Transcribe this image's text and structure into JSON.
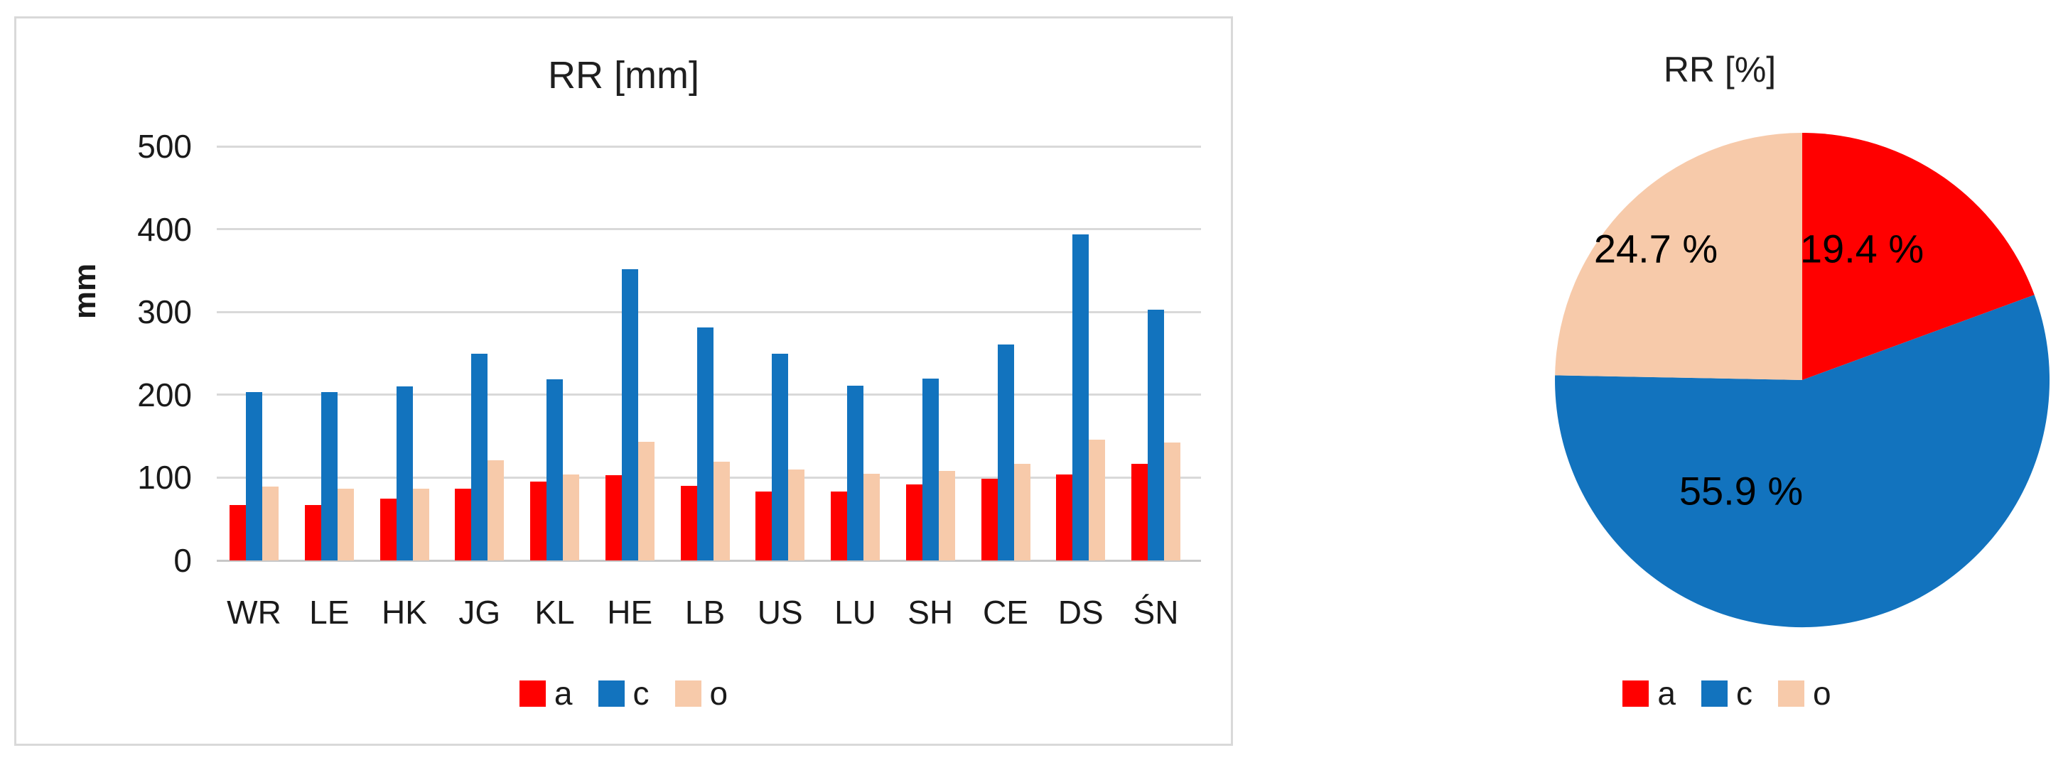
{
  "page": {
    "background": "#ffffff",
    "text_color": "#1a1a1a",
    "gridline_color": "#d9d9d9",
    "panel_border_color": "#d9d9d9"
  },
  "chart_data": [
    {
      "type": "bar",
      "title": "RR [mm]",
      "xlabel": "",
      "ylabel": "mm",
      "ylim": [
        0,
        500
      ],
      "ytick_step": 100,
      "grid": true,
      "legend_position": "bottom",
      "legend_labels": [
        "a",
        "c",
        "o"
      ],
      "categories": [
        "WR",
        "LE",
        "HK",
        "JG",
        "KL",
        "HE",
        "LB",
        "US",
        "LU",
        "SH",
        "CE",
        "DS",
        "ŚN"
      ],
      "series": [
        {
          "name": "a",
          "color": "#ff0000",
          "values": [
            67,
            67,
            75,
            87,
            95,
            103,
            90,
            83,
            83,
            92,
            99,
            104,
            117
          ]
        },
        {
          "name": "c",
          "color": "#1273be",
          "values": [
            203,
            203,
            210,
            250,
            219,
            352,
            281,
            250,
            211,
            220,
            261,
            394,
            303
          ]
        },
        {
          "name": "o",
          "color": "#f7caaa",
          "values": [
            89,
            87,
            87,
            121,
            104,
            143,
            119,
            110,
            105,
            108,
            117,
            146,
            142
          ]
        }
      ]
    },
    {
      "type": "pie",
      "title": "RR [%]",
      "start_angle_deg": 0,
      "direction": "clockwise",
      "legend_position": "bottom",
      "legend_labels": [
        "a",
        "c",
        "o"
      ],
      "slices": [
        {
          "name": "a",
          "value_pct": 19.4,
          "label": "19.4 %",
          "color": "#ff0000"
        },
        {
          "name": "c",
          "value_pct": 55.9,
          "label": "55.9 %",
          "color": "#1273be"
        },
        {
          "name": "o",
          "value_pct": 24.7,
          "label": "24.7 %",
          "color": "#f7caaa"
        }
      ]
    }
  ]
}
